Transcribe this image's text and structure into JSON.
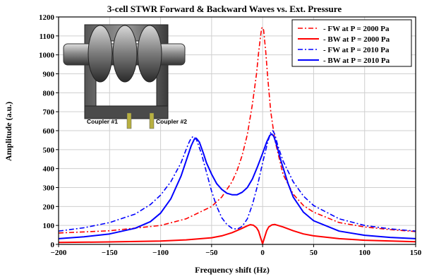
{
  "chart_data": {
    "type": "line",
    "title": "3-cell STWR Forward & Backward Waves vs. Ext. Pressure",
    "xlabel": "Frequency shift (Hz)",
    "ylabel": "Amplitude (a.u.)",
    "xlim": [
      -200,
      150
    ],
    "ylim": [
      0,
      1200
    ],
    "xticks": [
      -200,
      -150,
      -100,
      -50,
      0,
      50,
      100,
      150
    ],
    "yticks": [
      0,
      100,
      200,
      300,
      400,
      500,
      600,
      700,
      800,
      900,
      1000,
      1100,
      1200
    ],
    "grid": true,
    "legend_position": "top-right",
    "series": [
      {
        "name": "FW at P = 2000 Pa",
        "color": "#ff0000",
        "style": "dash-dot",
        "points": [
          [
            -200,
            60
          ],
          [
            -150,
            72
          ],
          [
            -100,
            100
          ],
          [
            -75,
            135
          ],
          [
            -50,
            200
          ],
          [
            -40,
            250
          ],
          [
            -30,
            330
          ],
          [
            -25,
            390
          ],
          [
            -20,
            470
          ],
          [
            -15,
            580
          ],
          [
            -10,
            740
          ],
          [
            -6,
            900
          ],
          [
            -4,
            1010
          ],
          [
            -2,
            1100
          ],
          [
            -1,
            1140
          ],
          [
            0,
            1145
          ],
          [
            1,
            1130
          ],
          [
            3,
            1020
          ],
          [
            5,
            880
          ],
          [
            8,
            700
          ],
          [
            12,
            550
          ],
          [
            20,
            370
          ],
          [
            30,
            265
          ],
          [
            40,
            205
          ],
          [
            50,
            170
          ],
          [
            75,
            115
          ],
          [
            100,
            92
          ],
          [
            125,
            78
          ],
          [
            150,
            68
          ]
        ]
      },
      {
        "name": "BW at P = 2000 Pa",
        "color": "#ff0000",
        "style": "solid",
        "points": [
          [
            -200,
            10
          ],
          [
            -150,
            13
          ],
          [
            -100,
            18
          ],
          [
            -75,
            24
          ],
          [
            -50,
            35
          ],
          [
            -40,
            45
          ],
          [
            -30,
            62
          ],
          [
            -20,
            85
          ],
          [
            -15,
            98
          ],
          [
            -12,
            104
          ],
          [
            -9,
            101
          ],
          [
            -6,
            88
          ],
          [
            -4,
            70
          ],
          [
            -2,
            35
          ],
          [
            0,
            3
          ],
          [
            2,
            38
          ],
          [
            4,
            72
          ],
          [
            6,
            92
          ],
          [
            9,
            103
          ],
          [
            12,
            105
          ],
          [
            20,
            92
          ],
          [
            30,
            72
          ],
          [
            40,
            55
          ],
          [
            50,
            45
          ],
          [
            75,
            30
          ],
          [
            100,
            22
          ],
          [
            150,
            14
          ]
        ]
      },
      {
        "name": "FW at P = 2010 Pa",
        "color": "#0000ff",
        "style": "dash-dot",
        "points": [
          [
            -200,
            70
          ],
          [
            -175,
            88
          ],
          [
            -150,
            115
          ],
          [
            -125,
            160
          ],
          [
            -110,
            210
          ],
          [
            -100,
            260
          ],
          [
            -90,
            330
          ],
          [
            -80,
            430
          ],
          [
            -75,
            500
          ],
          [
            -72,
            540
          ],
          [
            -70,
            560
          ],
          [
            -68,
            570
          ],
          [
            -65,
            555
          ],
          [
            -60,
            480
          ],
          [
            -55,
            380
          ],
          [
            -50,
            280
          ],
          [
            -45,
            200
          ],
          [
            -40,
            140
          ],
          [
            -35,
            105
          ],
          [
            -30,
            85
          ],
          [
            -25,
            80
          ],
          [
            -20,
            95
          ],
          [
            -15,
            135
          ],
          [
            -10,
            210
          ],
          [
            -5,
            310
          ],
          [
            0,
            430
          ],
          [
            5,
            540
          ],
          [
            8,
            590
          ],
          [
            10,
            600
          ],
          [
            12,
            580
          ],
          [
            15,
            520
          ],
          [
            20,
            440
          ],
          [
            30,
            330
          ],
          [
            40,
            255
          ],
          [
            50,
            205
          ],
          [
            75,
            135
          ],
          [
            100,
            100
          ],
          [
            125,
            82
          ],
          [
            150,
            70
          ]
        ]
      },
      {
        "name": "BW at P = 2010 Pa",
        "color": "#0000ff",
        "style": "solid",
        "points": [
          [
            -200,
            30
          ],
          [
            -175,
            40
          ],
          [
            -150,
            55
          ],
          [
            -125,
            85
          ],
          [
            -110,
            120
          ],
          [
            -100,
            165
          ],
          [
            -90,
            240
          ],
          [
            -80,
            360
          ],
          [
            -75,
            440
          ],
          [
            -70,
            520
          ],
          [
            -67,
            555
          ],
          [
            -65,
            560
          ],
          [
            -62,
            540
          ],
          [
            -58,
            480
          ],
          [
            -55,
            430
          ],
          [
            -50,
            370
          ],
          [
            -45,
            320
          ],
          [
            -40,
            290
          ],
          [
            -35,
            270
          ],
          [
            -30,
            262
          ],
          [
            -25,
            262
          ],
          [
            -20,
            275
          ],
          [
            -15,
            300
          ],
          [
            -10,
            345
          ],
          [
            -5,
            410
          ],
          [
            0,
            480
          ],
          [
            4,
            540
          ],
          [
            7,
            575
          ],
          [
            9,
            582
          ],
          [
            11,
            570
          ],
          [
            14,
            520
          ],
          [
            18,
            440
          ],
          [
            25,
            320
          ],
          [
            30,
            250
          ],
          [
            40,
            170
          ],
          [
            50,
            125
          ],
          [
            75,
            70
          ],
          [
            100,
            48
          ],
          [
            125,
            37
          ],
          [
            150,
            30
          ]
        ]
      }
    ]
  },
  "inset": {
    "coupler1_label": "Coupler #1",
    "coupler2_label": "Coupler #2"
  }
}
